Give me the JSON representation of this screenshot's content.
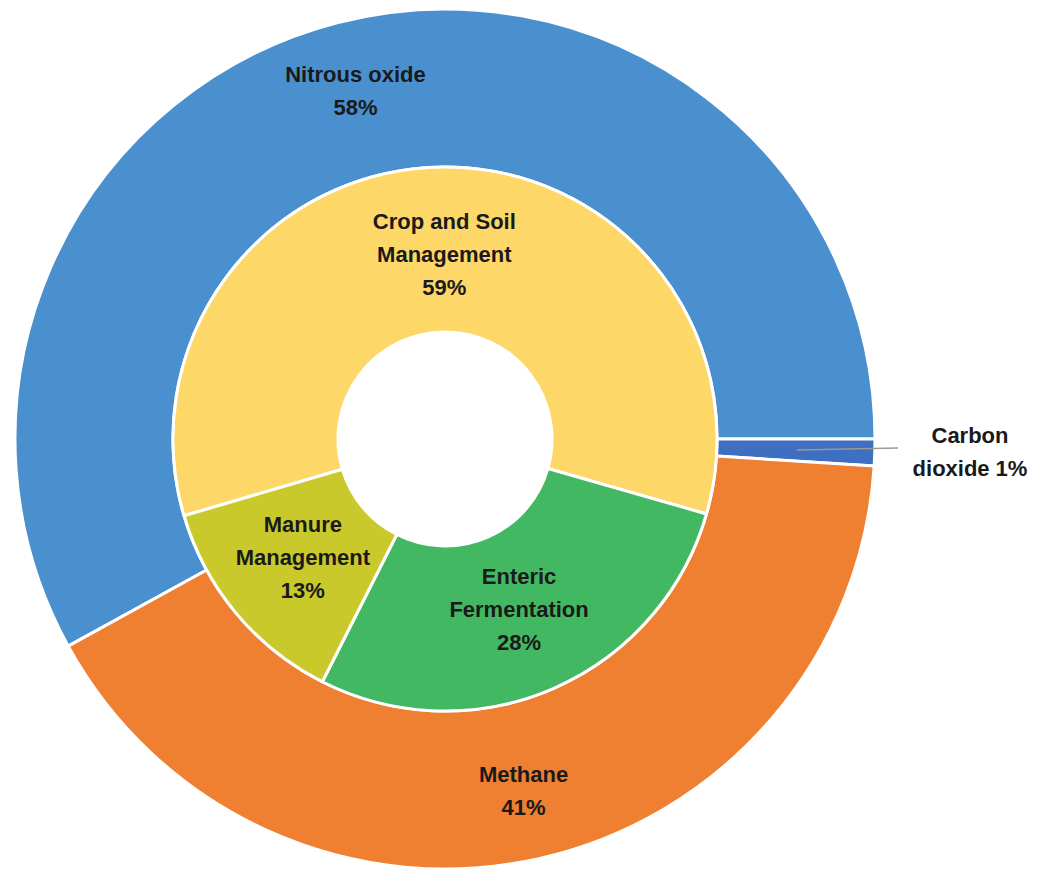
{
  "chart_data": [
    {
      "type": "pie",
      "categories": [
        "Nitrous oxide",
        "Carbon dioxide",
        "Methane"
      ],
      "values": [
        58,
        1,
        41
      ],
      "value_labels": [
        "58%",
        "1%",
        "41%"
      ],
      "colors": [
        "#4a90cf",
        "#3e6fc0",
        "#ef7f31"
      ],
      "data_labels": true
    },
    {
      "type": "pie",
      "categories": [
        "Crop and Soil Management",
        "Enteric Fermentation",
        "Manure Management"
      ],
      "values": [
        59,
        28,
        13
      ],
      "value_labels": [
        "59%",
        "28%",
        "13%"
      ],
      "colors": [
        "#fdd767",
        "#43b862",
        "#c9c92c"
      ],
      "data_labels": true
    }
  ]
}
